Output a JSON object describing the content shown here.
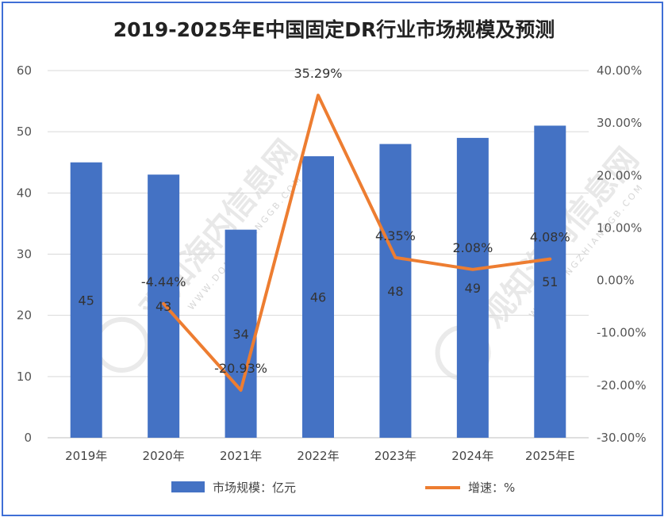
{
  "chart_data": {
    "type": "bar+line",
    "title": "2019-2025年E中国固定DR行业市场规模及预测",
    "categories": [
      "2019年",
      "2020年",
      "2021年",
      "2022年",
      "2023年",
      "2024年",
      "2025年E"
    ],
    "series": [
      {
        "name": "市场规模：亿元",
        "type": "bar",
        "axis": "left",
        "values": [
          45,
          43,
          34,
          46,
          48,
          49,
          51
        ],
        "labels": [
          "45",
          "43",
          "34",
          "46",
          "48",
          "49",
          "51"
        ],
        "color": "#4472c4"
      },
      {
        "name": "增速：%",
        "type": "line",
        "axis": "right",
        "values": [
          null,
          -4.44,
          -20.93,
          35.29,
          4.35,
          2.08,
          4.08
        ],
        "labels": [
          "",
          "-4.44%",
          "-20.93%",
          "35.29%",
          "4.35%",
          "2.08%",
          "4.08%"
        ],
        "color": "#ed7d31"
      }
    ],
    "y_left": {
      "min": 0,
      "max": 60,
      "ticks": [
        "0",
        "10",
        "20",
        "30",
        "40",
        "50",
        "60"
      ]
    },
    "y_right": {
      "min": -30,
      "max": 40,
      "ticks": [
        "-30.00%",
        "-20.00%",
        "-10.00%",
        "0.00%",
        "10.00%",
        "20.00%",
        "30.00%",
        "40.00%"
      ]
    },
    "grid": true,
    "legend_position": "bottom"
  },
  "watermark": {
    "text": "观知海内信息网",
    "subtext": "WWW.DONGZHIANGGB.COM",
    "color": "#d6d6d6"
  }
}
